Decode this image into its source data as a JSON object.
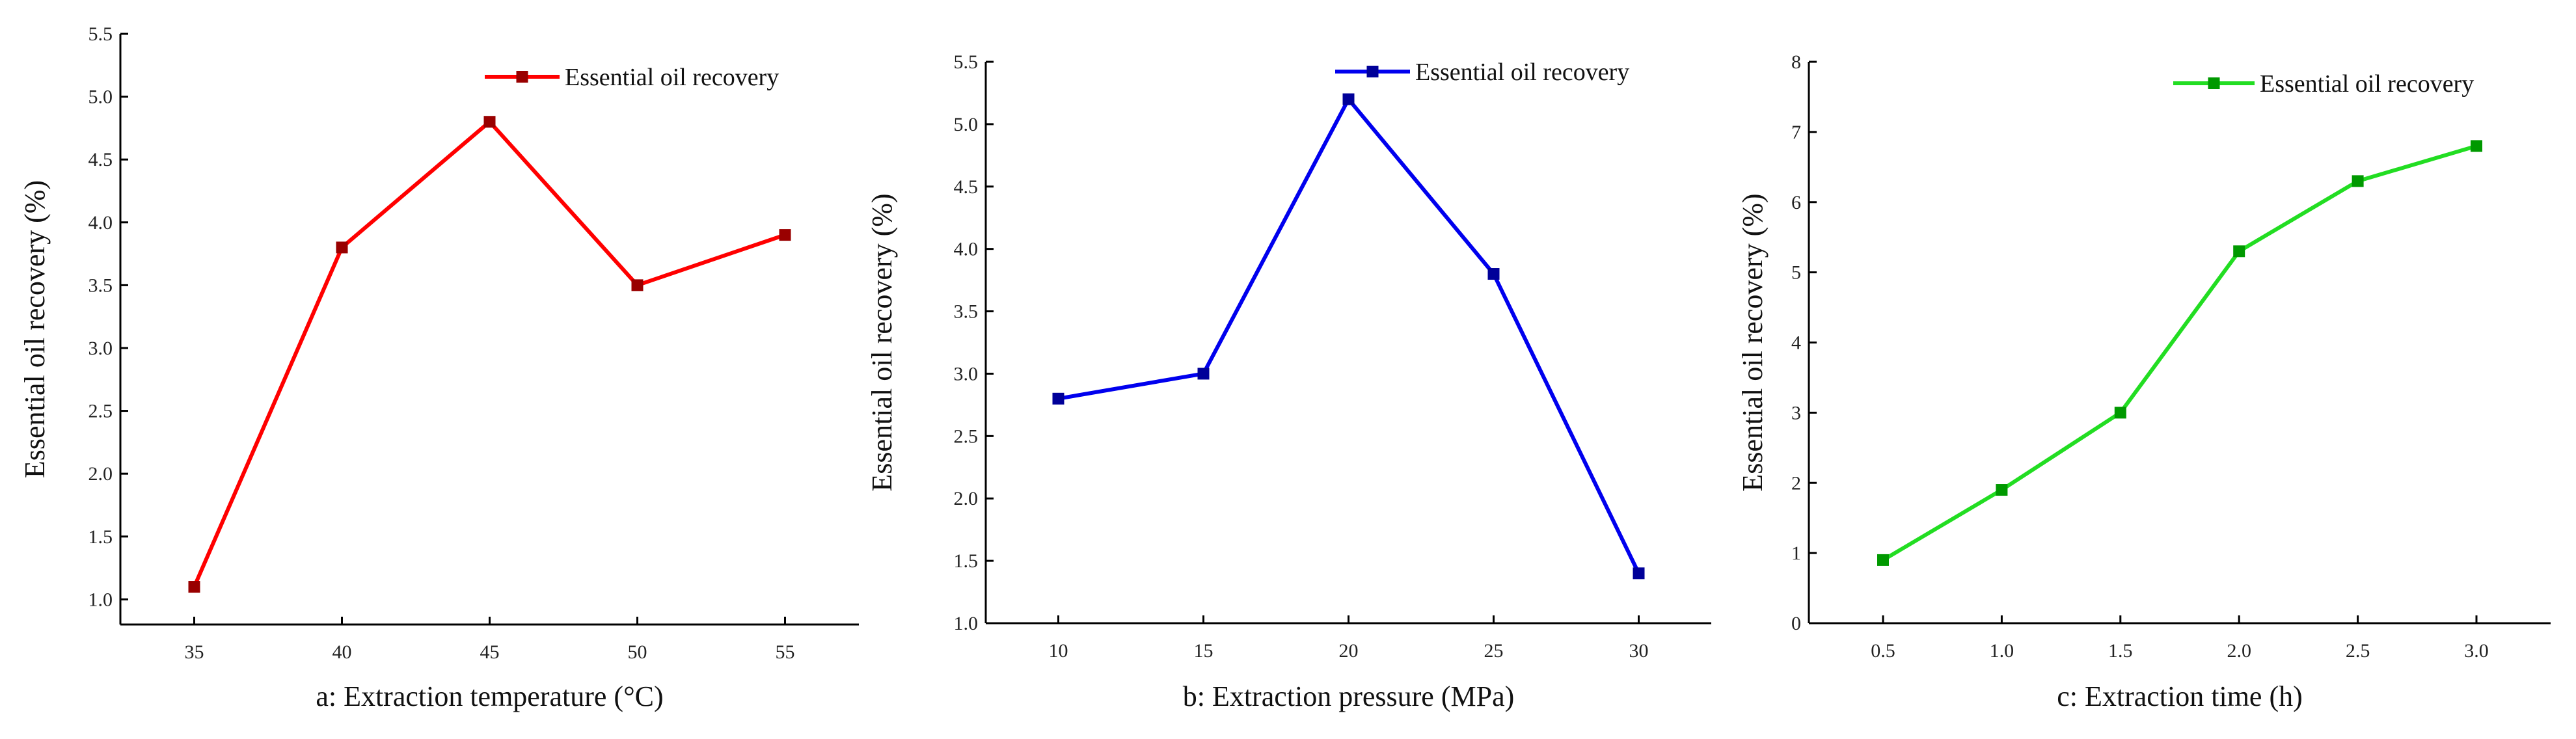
{
  "chart_data": [
    {
      "type": "line",
      "panel": "a",
      "xlabel": "a: Extraction temperature (°C)",
      "ylabel": "Essential oil recovery (%)",
      "x": [
        35,
        40,
        45,
        50,
        55
      ],
      "x_tick_labels": [
        "35",
        "40",
        "45",
        "50",
        "55"
      ],
      "y_tick_labels": [
        "1.0",
        "1.5",
        "2.0",
        "2.5",
        "3.0",
        "3.5",
        "4.0",
        "4.5",
        "5.0",
        "5.5"
      ],
      "ylim": [
        0.8,
        5.5
      ],
      "series": [
        {
          "name": "Essential oil recovery",
          "color": "#ff0000",
          "marker_color": "#990000",
          "values": [
            1.1,
            3.8,
            4.8,
            3.5,
            3.9
          ]
        }
      ],
      "legend": "top-right",
      "grid": false
    },
    {
      "type": "line",
      "panel": "b",
      "xlabel": "b: Extraction pressure (MPa)",
      "ylabel": "Essential oil recovery (%)",
      "x": [
        10,
        15,
        20,
        25,
        30
      ],
      "x_tick_labels": [
        "10",
        "15",
        "20",
        "25",
        "30"
      ],
      "y_tick_labels": [
        "1.0",
        "1.5",
        "2.0",
        "2.5",
        "3.0",
        "3.5",
        "4.0",
        "4.5",
        "5.0",
        "5.5"
      ],
      "ylim": [
        1.0,
        5.5
      ],
      "series": [
        {
          "name": "Essential oil recovery",
          "color": "#0000ee",
          "marker_color": "#000099",
          "values": [
            2.8,
            3.0,
            5.2,
            3.8,
            1.4
          ]
        }
      ],
      "legend": "top-right",
      "grid": false
    },
    {
      "type": "line",
      "panel": "c",
      "xlabel": "c: Extraction time (h)",
      "ylabel": "Essential oil recovery (%)",
      "x": [
        0.5,
        1.0,
        1.5,
        2.0,
        2.5,
        3.0
      ],
      "x_tick_labels": [
        "0.5",
        "1.0",
        "1.5",
        "2.0",
        "2.5",
        "3.0"
      ],
      "y_tick_labels": [
        "0",
        "1",
        "2",
        "3",
        "4",
        "5",
        "6",
        "7",
        "8"
      ],
      "ylim": [
        0,
        8
      ],
      "series": [
        {
          "name": "Essential oil recovery",
          "color": "#22dd22",
          "marker_color": "#009900",
          "values": [
            0.9,
            1.9,
            3.0,
            5.3,
            6.3,
            6.8
          ]
        }
      ],
      "legend": "top-right",
      "grid": false
    }
  ]
}
